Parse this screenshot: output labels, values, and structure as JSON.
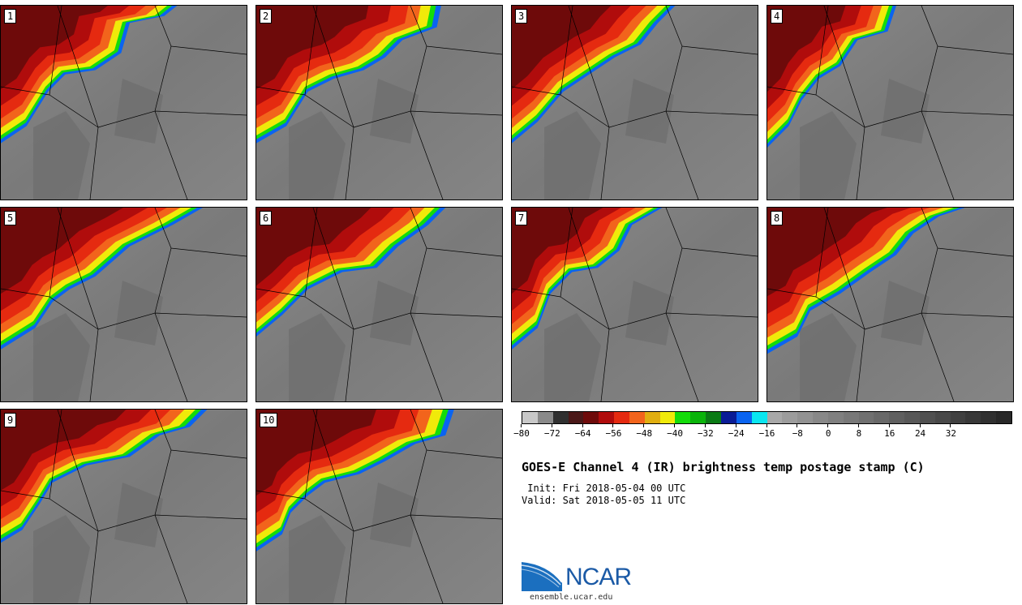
{
  "panels": [
    {
      "label": "1"
    },
    {
      "label": "2"
    },
    {
      "label": "3"
    },
    {
      "label": "4"
    },
    {
      "label": "5"
    },
    {
      "label": "6"
    },
    {
      "label": "7"
    },
    {
      "label": "8"
    },
    {
      "label": "9"
    },
    {
      "label": "10"
    }
  ],
  "colorbar": {
    "colors": [
      "#c8c8c8",
      "#8a8a8a",
      "#303030",
      "#4a1818",
      "#6e0a0a",
      "#b00c0c",
      "#e52a10",
      "#f2641c",
      "#e0ae10",
      "#f0ea0a",
      "#14dc0a",
      "#0ab40a",
      "#0a7a14",
      "#0a1c96",
      "#0a64f0",
      "#0ae6f0",
      "#a8a8a8",
      "#9c9c9c",
      "#929292",
      "#888888",
      "#808080",
      "#787878",
      "#707070",
      "#686868",
      "#606060",
      "#585858",
      "#505050",
      "#484848",
      "#404040",
      "#383838",
      "#303030",
      "#282828"
    ],
    "ticks": [
      "−80",
      "−72",
      "−64",
      "−56",
      "−48",
      "−40",
      "−32",
      "−24",
      "−16",
      "−8",
      "0",
      "8",
      "16",
      "24",
      "32"
    ]
  },
  "title": "GOES-E Channel 4 (IR) brightness temp postage stamp (C)",
  "init_line": " Init: Fri 2018-05-04 00 UTC",
  "valid_line": "Valid: Sat 2018-05-05 11 UTC",
  "logo": {
    "name": "NCAR",
    "url": "ensemble.ucar.edu"
  }
}
